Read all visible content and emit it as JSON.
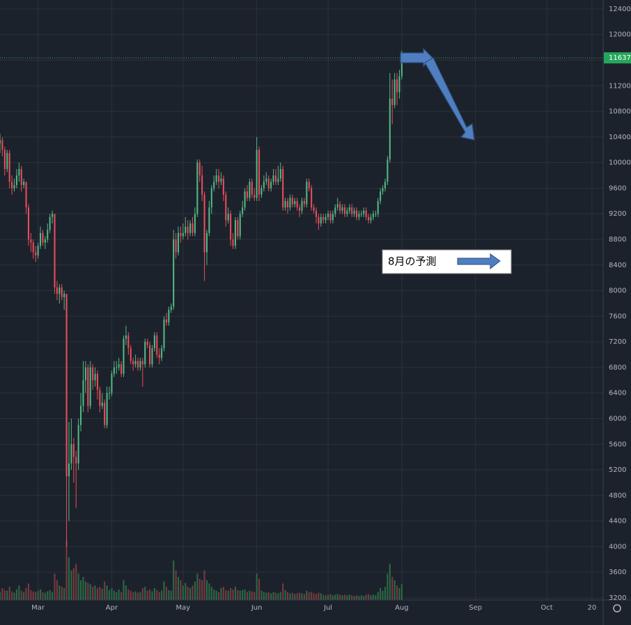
{
  "chart_data": {
    "type": "candlestick",
    "up_color": "#53b987",
    "down_color": "#eb4d5c",
    "up_volume_color": "#2c6b45",
    "down_volume_color": "#7a3a42",
    "grid": true,
    "xlim": [
      44,
      297.7
    ],
    "ylim": [
      3167,
      12541
    ],
    "xticks": [
      {
        "value": 60,
        "label": "Mar"
      },
      {
        "value": 91,
        "label": "Apr"
      },
      {
        "value": 121,
        "label": "May"
      },
      {
        "value": 152,
        "label": "Jun"
      },
      {
        "value": 182,
        "label": "Jul"
      },
      {
        "value": 213,
        "label": "Aug"
      },
      {
        "value": 244,
        "label": "Sep"
      },
      {
        "value": 274,
        "label": "Oct"
      },
      {
        "value": 293,
        "label": "20"
      }
    ],
    "yticks": [
      3200,
      3600,
      4000,
      4400,
      4800,
      5200,
      5600,
      6000,
      6400,
      6800,
      7200,
      7600,
      8000,
      8400,
      8800,
      9200,
      9600,
      10000,
      10400,
      10800,
      11200,
      11600,
      12000,
      12400
    ],
    "last_price": 11637,
    "last_price_color": "#26a65b",
    "annotation": "8月の予測",
    "x": [
      44,
      45,
      46,
      47,
      48,
      49,
      50,
      51,
      52,
      53,
      54,
      55,
      56,
      57,
      58,
      59,
      60,
      61,
      62,
      63,
      64,
      65,
      66,
      67,
      68,
      69,
      70,
      71,
      72,
      73,
      74,
      75,
      76,
      77,
      78,
      79,
      80,
      81,
      82,
      83,
      84,
      85,
      86,
      87,
      88,
      89,
      90,
      91,
      92,
      93,
      94,
      95,
      96,
      97,
      98,
      99,
      100,
      101,
      102,
      103,
      104,
      105,
      106,
      107,
      108,
      109,
      110,
      111,
      112,
      113,
      114,
      115,
      116,
      117,
      118,
      119,
      120,
      121,
      122,
      123,
      124,
      125,
      126,
      127,
      128,
      129,
      130,
      131,
      132,
      133,
      134,
      135,
      136,
      137,
      138,
      139,
      140,
      141,
      142,
      143,
      144,
      145,
      146,
      147,
      148,
      149,
      150,
      151,
      152,
      153,
      154,
      155,
      156,
      157,
      158,
      159,
      160,
      161,
      162,
      163,
      164,
      165,
      166,
      167,
      168,
      169,
      170,
      171,
      172,
      173,
      174,
      175,
      176,
      177,
      178,
      179,
      180,
      181,
      182,
      183,
      184,
      185,
      186,
      187,
      188,
      189,
      190,
      191,
      192,
      193,
      194,
      195,
      196,
      197,
      198,
      199,
      200,
      201,
      202,
      203,
      204,
      205,
      206,
      207,
      208,
      209,
      210,
      211,
      212,
      213
    ],
    "ohlc": [
      [
        10300,
        10450,
        10150,
        10350
      ],
      [
        10350,
        10400,
        10100,
        10200
      ],
      [
        10200,
        10250,
        9800,
        9900
      ],
      [
        9900,
        10200,
        9850,
        10150
      ],
      [
        10150,
        10200,
        9600,
        9700
      ],
      [
        9700,
        9800,
        9500,
        9600
      ],
      [
        9600,
        9750,
        9550,
        9650
      ],
      [
        9650,
        9900,
        9600,
        9800
      ],
      [
        9800,
        10000,
        9700,
        9900
      ],
      [
        9900,
        9950,
        9550,
        9650
      ],
      [
        9650,
        9750,
        9600,
        9700
      ],
      [
        9700,
        9700,
        9200,
        9300
      ],
      [
        9300,
        9350,
        8700,
        8800
      ],
      [
        8800,
        8900,
        8600,
        8750
      ],
      [
        8750,
        8800,
        8500,
        8600
      ],
      [
        8600,
        8700,
        8450,
        8550
      ],
      [
        8550,
        8750,
        8500,
        8700
      ],
      [
        8700,
        9000,
        8650,
        8900
      ],
      [
        8900,
        8950,
        8700,
        8750
      ],
      [
        8750,
        8850,
        8650,
        8800
      ],
      [
        8800,
        9050,
        8750,
        8950
      ],
      [
        8950,
        9200,
        8900,
        9150
      ],
      [
        9150,
        9250,
        9050,
        9200
      ],
      [
        9200,
        9200,
        7950,
        8050
      ],
      [
        8050,
        8150,
        7850,
        7950
      ],
      [
        7950,
        8100,
        7800,
        8050
      ],
      [
        8050,
        8100,
        7850,
        7900
      ],
      [
        7900,
        8000,
        7700,
        7950
      ],
      [
        7950,
        7950,
        4000,
        5100
      ],
      [
        5100,
        5950,
        4400,
        5300
      ],
      [
        5300,
        6000,
        5200,
        5600
      ],
      [
        5600,
        5700,
        5000,
        5400
      ],
      [
        5400,
        5500,
        4600,
        5300
      ],
      [
        5300,
        6000,
        5200,
        5900
      ],
      [
        5900,
        6400,
        5800,
        6200
      ],
      [
        6200,
        6900,
        6100,
        6600
      ],
      [
        6600,
        6900,
        6400,
        6800
      ],
      [
        6800,
        6850,
        6100,
        6200
      ],
      [
        6200,
        6900,
        6150,
        6800
      ],
      [
        6800,
        6850,
        6450,
        6600
      ],
      [
        6600,
        6800,
        6500,
        6700
      ],
      [
        6700,
        6750,
        6300,
        6450
      ],
      [
        6450,
        6500,
        6100,
        6200
      ],
      [
        6200,
        6400,
        6150,
        6250
      ],
      [
        6250,
        6300,
        5850,
        5900
      ],
      [
        5900,
        6500,
        5850,
        6400
      ],
      [
        6400,
        6500,
        6300,
        6400
      ],
      [
        6400,
        6750,
        6350,
        6700
      ],
      [
        6700,
        6900,
        6650,
        6800
      ],
      [
        6800,
        6900,
        6700,
        6800
      ],
      [
        6800,
        6950,
        6750,
        6850
      ],
      [
        6850,
        6900,
        6650,
        6700
      ],
      [
        6700,
        7300,
        6650,
        7250
      ],
      [
        7250,
        7450,
        7150,
        7300
      ],
      [
        7300,
        7350,
        7000,
        7100
      ],
      [
        7100,
        7150,
        6850,
        6900
      ],
      [
        6900,
        6950,
        6750,
        6850
      ],
      [
        6850,
        7000,
        6800,
        6900
      ],
      [
        6900,
        6950,
        6750,
        6800
      ],
      [
        6800,
        6950,
        6750,
        6900
      ],
      [
        6900,
        6950,
        6500,
        6850
      ],
      [
        6850,
        7250,
        6800,
        7200
      ],
      [
        7200,
        7250,
        7100,
        7150
      ],
      [
        7150,
        7200,
        6800,
        6850
      ],
      [
        6850,
        7150,
        6800,
        7100
      ],
      [
        7100,
        7350,
        7050,
        7300
      ],
      [
        7300,
        7350,
        6950,
        7000
      ],
      [
        7000,
        7100,
        6850,
        6950
      ],
      [
        6950,
        7150,
        6900,
        7100
      ],
      [
        7100,
        7600,
        7050,
        7550
      ],
      [
        7550,
        7650,
        7450,
        7500
      ],
      [
        7500,
        7750,
        7450,
        7700
      ],
      [
        7700,
        7800,
        7650,
        7750
      ],
      [
        7750,
        8950,
        7700,
        8800
      ],
      [
        8800,
        8900,
        8500,
        8600
      ],
      [
        8600,
        9000,
        8550,
        8900
      ],
      [
        8900,
        9000,
        8750,
        8850
      ],
      [
        8850,
        9050,
        8800,
        8900
      ],
      [
        8900,
        9150,
        8850,
        9000
      ],
      [
        9000,
        9100,
        8800,
        8900
      ],
      [
        8900,
        9100,
        8850,
        9050
      ],
      [
        9050,
        9150,
        8850,
        8900
      ],
      [
        8900,
        9300,
        8850,
        9200
      ],
      [
        9200,
        10050,
        9150,
        10000
      ],
      [
        10000,
        10050,
        9700,
        9800
      ],
      [
        9800,
        9950,
        9400,
        9500
      ],
      [
        9500,
        9550,
        8150,
        8600
      ],
      [
        8600,
        8950,
        8400,
        8900
      ],
      [
        8900,
        9400,
        8850,
        9300
      ],
      [
        9300,
        9650,
        9200,
        9600
      ],
      [
        9600,
        9800,
        9550,
        9700
      ],
      [
        9700,
        9900,
        9650,
        9800
      ],
      [
        9800,
        9900,
        9600,
        9700
      ],
      [
        9700,
        9850,
        9650,
        9750
      ],
      [
        9750,
        9800,
        9400,
        9500
      ],
      [
        9500,
        9550,
        9000,
        9100
      ],
      [
        9100,
        9300,
        9050,
        9200
      ],
      [
        9200,
        9250,
        8700,
        8800
      ],
      [
        8800,
        8900,
        8650,
        8700
      ],
      [
        8700,
        9150,
        8650,
        9100
      ],
      [
        9100,
        9150,
        8800,
        8850
      ],
      [
        8850,
        9250,
        8800,
        9200
      ],
      [
        9200,
        9400,
        9150,
        9300
      ],
      [
        9300,
        9600,
        9250,
        9550
      ],
      [
        9550,
        9650,
        9400,
        9450
      ],
      [
        9450,
        9750,
        9400,
        9700
      ],
      [
        9700,
        9750,
        9450,
        9500
      ],
      [
        9500,
        9600,
        9400,
        9450
      ],
      [
        9450,
        10400,
        9400,
        10200
      ],
      [
        10200,
        10250,
        9400,
        9500
      ],
      [
        9500,
        9650,
        9450,
        9600
      ],
      [
        9600,
        9800,
        9550,
        9700
      ],
      [
        9700,
        9850,
        9650,
        9750
      ],
      [
        9750,
        9800,
        9550,
        9600
      ],
      [
        9600,
        9750,
        9550,
        9700
      ],
      [
        9700,
        9900,
        9650,
        9800
      ],
      [
        9800,
        9900,
        9650,
        9700
      ],
      [
        9700,
        9950,
        9650,
        9750
      ],
      [
        9750,
        10000,
        9700,
        9900
      ],
      [
        9900,
        9950,
        9250,
        9300
      ],
      [
        9300,
        9450,
        9250,
        9400
      ],
      [
        9400,
        9450,
        9200,
        9300
      ],
      [
        9300,
        9500,
        9250,
        9450
      ],
      [
        9450,
        9500,
        9300,
        9350
      ],
      [
        9350,
        9450,
        9300,
        9400
      ],
      [
        9400,
        9450,
        9250,
        9300
      ],
      [
        9300,
        9350,
        9150,
        9250
      ],
      [
        9250,
        9450,
        9200,
        9400
      ],
      [
        9400,
        9450,
        9300,
        9350
      ],
      [
        9350,
        9750,
        9300,
        9700
      ],
      [
        9700,
        9750,
        9550,
        9600
      ],
      [
        9600,
        9650,
        9250,
        9300
      ],
      [
        9300,
        9350,
        9200,
        9250
      ],
      [
        9250,
        9300,
        9050,
        9150
      ],
      [
        9150,
        9200,
        8950,
        9050
      ],
      [
        9050,
        9200,
        9000,
        9150
      ],
      [
        9150,
        9200,
        9050,
        9100
      ],
      [
        9100,
        9200,
        9050,
        9150
      ],
      [
        9150,
        9250,
        9100,
        9200
      ],
      [
        9200,
        9250,
        9050,
        9100
      ],
      [
        9100,
        9250,
        9050,
        9200
      ],
      [
        9200,
        9350,
        9150,
        9300
      ],
      [
        9300,
        9450,
        9250,
        9350
      ],
      [
        9350,
        9400,
        9200,
        9250
      ],
      [
        9250,
        9350,
        9200,
        9300
      ],
      [
        9300,
        9350,
        9150,
        9200
      ],
      [
        9200,
        9300,
        9150,
        9250
      ],
      [
        9250,
        9350,
        9200,
        9300
      ],
      [
        9300,
        9350,
        9150,
        9200
      ],
      [
        9200,
        9300,
        9150,
        9250
      ],
      [
        9250,
        9300,
        9100,
        9150
      ],
      [
        9150,
        9250,
        9100,
        9200
      ],
      [
        9200,
        9250,
        9150,
        9200
      ],
      [
        9200,
        9300,
        9150,
        9250
      ],
      [
        9250,
        9300,
        9100,
        9150
      ],
      [
        9150,
        9200,
        9050,
        9100
      ],
      [
        9100,
        9200,
        9050,
        9150
      ],
      [
        9150,
        9250,
        9100,
        9200
      ],
      [
        9200,
        9250,
        9150,
        9200
      ],
      [
        9200,
        9450,
        9150,
        9400
      ],
      [
        9400,
        9600,
        9350,
        9550
      ],
      [
        9550,
        9650,
        9500,
        9600
      ],
      [
        9600,
        9750,
        9550,
        9700
      ],
      [
        9700,
        10100,
        9650,
        10050
      ],
      [
        10050,
        11400,
        10000,
        11000
      ],
      [
        11000,
        11300,
        10600,
        10900
      ],
      [
        10900,
        11400,
        10850,
        11300
      ],
      [
        11300,
        11400,
        10900,
        11100
      ],
      [
        11100,
        11450,
        11000,
        11350
      ],
      [
        11350,
        11750,
        11300,
        11637
      ]
    ],
    "volume": [
      12,
      18,
      15,
      14,
      20,
      13,
      11,
      16,
      22,
      14,
      12,
      18,
      25,
      15,
      13,
      12,
      14,
      16,
      12,
      11,
      13,
      15,
      12,
      40,
      30,
      22,
      20,
      18,
      90,
      65,
      45,
      48,
      55,
      40,
      30,
      35,
      28,
      26,
      24,
      20,
      22,
      18,
      20,
      17,
      28,
      22,
      15,
      18,
      14,
      12,
      16,
      12,
      30,
      22,
      16,
      14,
      12,
      13,
      11,
      12,
      18,
      20,
      14,
      16,
      13,
      18,
      15,
      12,
      14,
      28,
      20,
      15,
      14,
      60,
      45,
      35,
      30,
      22,
      26,
      20,
      18,
      22,
      28,
      40,
      32,
      30,
      45,
      30,
      25,
      20,
      16,
      14,
      12,
      18,
      20,
      15,
      14,
      18,
      16,
      20,
      15,
      14,
      15,
      16,
      12,
      14,
      13,
      12,
      40,
      32,
      14,
      12,
      11,
      12,
      10,
      12,
      11,
      10,
      12,
      25,
      15,
      12,
      10,
      11,
      9,
      10,
      11,
      10,
      9,
      14,
      12,
      12,
      10,
      9,
      11,
      10,
      8,
      7,
      8,
      9,
      7,
      8,
      9,
      8,
      7,
      8,
      7,
      8,
      7,
      6,
      7,
      6,
      7,
      6,
      8,
      9,
      7,
      8,
      7,
      12,
      18,
      14,
      20,
      40,
      55,
      35,
      30,
      22,
      18,
      24
    ]
  }
}
